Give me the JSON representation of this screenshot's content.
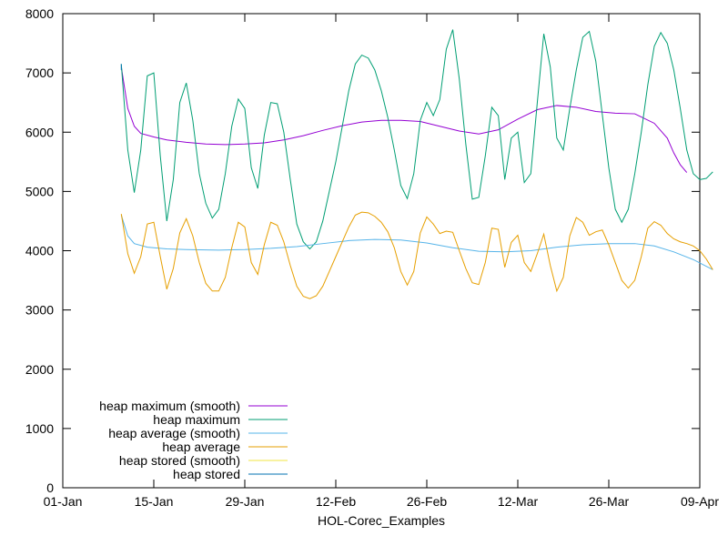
{
  "chart_data": {
    "type": "line",
    "xlabel": "HOL-Corec_Examples",
    "ylabel": "",
    "x_axis_type": "date",
    "xlim": [
      "2023-01-01",
      "2023-04-09"
    ],
    "ylim": [
      0,
      8000
    ],
    "x_ticks": [
      {
        "date": "2023-01-01",
        "label": "01-Jan"
      },
      {
        "date": "2023-01-15",
        "label": "15-Jan"
      },
      {
        "date": "2023-01-29",
        "label": "29-Jan"
      },
      {
        "date": "2023-02-12",
        "label": "12-Feb"
      },
      {
        "date": "2023-02-26",
        "label": "26-Feb"
      },
      {
        "date": "2023-03-12",
        "label": "12-Mar"
      },
      {
        "date": "2023-03-26",
        "label": "26-Mar"
      },
      {
        "date": "2023-04-09",
        "label": "09-Apr"
      }
    ],
    "y_ticks": [
      0,
      1000,
      2000,
      3000,
      4000,
      5000,
      6000,
      7000,
      8000
    ],
    "grid": false,
    "legend_position": "bottom-left",
    "series": [
      {
        "name": "heap maximum (smooth)",
        "color": "#9400d3",
        "points": [
          [
            "2023-01-10",
            7100
          ],
          [
            "2023-01-11",
            6400
          ],
          [
            "2023-01-12",
            6100
          ],
          [
            "2023-01-13",
            5980
          ],
          [
            "2023-01-15",
            5920
          ],
          [
            "2023-01-17",
            5870
          ],
          [
            "2023-01-20",
            5830
          ],
          [
            "2023-01-23",
            5800
          ],
          [
            "2023-01-26",
            5790
          ],
          [
            "2023-01-29",
            5800
          ],
          [
            "2023-02-01",
            5820
          ],
          [
            "2023-02-04",
            5870
          ],
          [
            "2023-02-07",
            5940
          ],
          [
            "2023-02-10",
            6030
          ],
          [
            "2023-02-13",
            6110
          ],
          [
            "2023-02-16",
            6170
          ],
          [
            "2023-02-19",
            6200
          ],
          [
            "2023-02-22",
            6200
          ],
          [
            "2023-02-25",
            6180
          ],
          [
            "2023-02-28",
            6100
          ],
          [
            "2023-03-03",
            6020
          ],
          [
            "2023-03-06",
            5970
          ],
          [
            "2023-03-09",
            6040
          ],
          [
            "2023-03-12",
            6220
          ],
          [
            "2023-03-15",
            6380
          ],
          [
            "2023-03-18",
            6450
          ],
          [
            "2023-03-21",
            6420
          ],
          [
            "2023-03-24",
            6350
          ],
          [
            "2023-03-27",
            6320
          ],
          [
            "2023-03-30",
            6310
          ],
          [
            "2023-04-02",
            6150
          ],
          [
            "2023-04-04",
            5900
          ],
          [
            "2023-04-05",
            5650
          ],
          [
            "2023-04-06",
            5450
          ],
          [
            "2023-04-07",
            5320
          ]
        ]
      },
      {
        "name": "heap maximum",
        "color": "#009e73",
        "points": [
          [
            "2023-01-10",
            7150
          ],
          [
            "2023-01-11",
            5700
          ],
          [
            "2023-01-12",
            4980
          ],
          [
            "2023-01-13",
            5700
          ],
          [
            "2023-01-14",
            6950
          ],
          [
            "2023-01-15",
            7000
          ],
          [
            "2023-01-16",
            5600
          ],
          [
            "2023-01-17",
            4500
          ],
          [
            "2023-01-18",
            5200
          ],
          [
            "2023-01-19",
            6500
          ],
          [
            "2023-01-20",
            6830
          ],
          [
            "2023-01-21",
            6200
          ],
          [
            "2023-01-22",
            5300
          ],
          [
            "2023-01-23",
            4800
          ],
          [
            "2023-01-24",
            4550
          ],
          [
            "2023-01-25",
            4700
          ],
          [
            "2023-01-26",
            5300
          ],
          [
            "2023-01-27",
            6100
          ],
          [
            "2023-01-28",
            6560
          ],
          [
            "2023-01-29",
            6400
          ],
          [
            "2023-01-30",
            5400
          ],
          [
            "2023-01-31",
            5050
          ],
          [
            "2023-02-01",
            5950
          ],
          [
            "2023-02-02",
            6500
          ],
          [
            "2023-02-03",
            6480
          ],
          [
            "2023-02-04",
            6000
          ],
          [
            "2023-02-05",
            5200
          ],
          [
            "2023-02-06",
            4450
          ],
          [
            "2023-02-07",
            4150
          ],
          [
            "2023-02-08",
            4030
          ],
          [
            "2023-02-09",
            4150
          ],
          [
            "2023-02-10",
            4500
          ],
          [
            "2023-02-11",
            5000
          ],
          [
            "2023-02-12",
            5500
          ],
          [
            "2023-02-13",
            6100
          ],
          [
            "2023-02-14",
            6700
          ],
          [
            "2023-02-15",
            7150
          ],
          [
            "2023-02-16",
            7300
          ],
          [
            "2023-02-17",
            7250
          ],
          [
            "2023-02-18",
            7050
          ],
          [
            "2023-02-19",
            6700
          ],
          [
            "2023-02-20",
            6250
          ],
          [
            "2023-02-21",
            5700
          ],
          [
            "2023-02-22",
            5100
          ],
          [
            "2023-02-23",
            4880
          ],
          [
            "2023-02-24",
            5300
          ],
          [
            "2023-02-25",
            6200
          ],
          [
            "2023-02-26",
            6500
          ],
          [
            "2023-02-27",
            6280
          ],
          [
            "2023-02-28",
            6550
          ],
          [
            "2023-03-01",
            7400
          ],
          [
            "2023-03-02",
            7730
          ],
          [
            "2023-03-03",
            6900
          ],
          [
            "2023-03-04",
            5800
          ],
          [
            "2023-03-05",
            4870
          ],
          [
            "2023-03-06",
            4900
          ],
          [
            "2023-03-07",
            5600
          ],
          [
            "2023-03-08",
            6420
          ],
          [
            "2023-03-09",
            6280
          ],
          [
            "2023-03-10",
            5200
          ],
          [
            "2023-03-11",
            5900
          ],
          [
            "2023-03-12",
            6000
          ],
          [
            "2023-03-13",
            5150
          ],
          [
            "2023-03-14",
            5300
          ],
          [
            "2023-03-15",
            6500
          ],
          [
            "2023-03-16",
            7660
          ],
          [
            "2023-03-17",
            7100
          ],
          [
            "2023-03-18",
            5900
          ],
          [
            "2023-03-19",
            5700
          ],
          [
            "2023-03-20",
            6400
          ],
          [
            "2023-03-21",
            7050
          ],
          [
            "2023-03-22",
            7600
          ],
          [
            "2023-03-23",
            7700
          ],
          [
            "2023-03-24",
            7200
          ],
          [
            "2023-03-25",
            6300
          ],
          [
            "2023-03-26",
            5400
          ],
          [
            "2023-03-27",
            4700
          ],
          [
            "2023-03-28",
            4480
          ],
          [
            "2023-03-29",
            4700
          ],
          [
            "2023-03-30",
            5300
          ],
          [
            "2023-03-31",
            6000
          ],
          [
            "2023-04-01",
            6800
          ],
          [
            "2023-04-02",
            7450
          ],
          [
            "2023-04-03",
            7680
          ],
          [
            "2023-04-04",
            7500
          ],
          [
            "2023-04-05",
            7050
          ],
          [
            "2023-04-06",
            6400
          ],
          [
            "2023-04-07",
            5700
          ],
          [
            "2023-04-08",
            5300
          ],
          [
            "2023-04-09",
            5200
          ],
          [
            "2023-04-10",
            5220
          ],
          [
            "2023-04-11",
            5330
          ]
        ]
      },
      {
        "name": "heap average (smooth)",
        "color": "#56b4e9",
        "points": [
          [
            "2023-01-10",
            4600
          ],
          [
            "2023-01-11",
            4250
          ],
          [
            "2023-01-12",
            4120
          ],
          [
            "2023-01-14",
            4060
          ],
          [
            "2023-01-17",
            4030
          ],
          [
            "2023-01-20",
            4020
          ],
          [
            "2023-01-25",
            4010
          ],
          [
            "2023-01-29",
            4020
          ],
          [
            "2023-02-02",
            4040
          ],
          [
            "2023-02-06",
            4070
          ],
          [
            "2023-02-10",
            4120
          ],
          [
            "2023-02-14",
            4170
          ],
          [
            "2023-02-18",
            4190
          ],
          [
            "2023-02-22",
            4180
          ],
          [
            "2023-02-26",
            4130
          ],
          [
            "2023-03-02",
            4050
          ],
          [
            "2023-03-06",
            3990
          ],
          [
            "2023-03-10",
            3980
          ],
          [
            "2023-03-14",
            4000
          ],
          [
            "2023-03-18",
            4060
          ],
          [
            "2023-03-22",
            4100
          ],
          [
            "2023-03-26",
            4120
          ],
          [
            "2023-03-30",
            4120
          ],
          [
            "2023-04-02",
            4080
          ],
          [
            "2023-04-05",
            3980
          ],
          [
            "2023-04-08",
            3850
          ],
          [
            "2023-04-11",
            3680
          ]
        ]
      },
      {
        "name": "heap average",
        "color": "#e69f00",
        "points": [
          [
            "2023-01-10",
            4620
          ],
          [
            "2023-01-11",
            3950
          ],
          [
            "2023-01-12",
            3620
          ],
          [
            "2023-01-13",
            3900
          ],
          [
            "2023-01-14",
            4450
          ],
          [
            "2023-01-15",
            4480
          ],
          [
            "2023-01-16",
            3900
          ],
          [
            "2023-01-17",
            3350
          ],
          [
            "2023-01-18",
            3700
          ],
          [
            "2023-01-19",
            4300
          ],
          [
            "2023-01-20",
            4540
          ],
          [
            "2023-01-21",
            4250
          ],
          [
            "2023-01-22",
            3800
          ],
          [
            "2023-01-23",
            3450
          ],
          [
            "2023-01-24",
            3320
          ],
          [
            "2023-01-25",
            3320
          ],
          [
            "2023-01-26",
            3550
          ],
          [
            "2023-01-27",
            4050
          ],
          [
            "2023-01-28",
            4480
          ],
          [
            "2023-01-29",
            4400
          ],
          [
            "2023-01-30",
            3800
          ],
          [
            "2023-01-31",
            3600
          ],
          [
            "2023-02-01",
            4100
          ],
          [
            "2023-02-02",
            4480
          ],
          [
            "2023-02-03",
            4430
          ],
          [
            "2023-02-04",
            4150
          ],
          [
            "2023-02-05",
            3750
          ],
          [
            "2023-02-06",
            3400
          ],
          [
            "2023-02-07",
            3230
          ],
          [
            "2023-02-08",
            3190
          ],
          [
            "2023-02-09",
            3240
          ],
          [
            "2023-02-10",
            3400
          ],
          [
            "2023-02-11",
            3650
          ],
          [
            "2023-02-12",
            3900
          ],
          [
            "2023-02-13",
            4150
          ],
          [
            "2023-02-14",
            4400
          ],
          [
            "2023-02-15",
            4600
          ],
          [
            "2023-02-16",
            4650
          ],
          [
            "2023-02-17",
            4640
          ],
          [
            "2023-02-18",
            4580
          ],
          [
            "2023-02-19",
            4480
          ],
          [
            "2023-02-20",
            4320
          ],
          [
            "2023-02-21",
            4050
          ],
          [
            "2023-02-22",
            3650
          ],
          [
            "2023-02-23",
            3420
          ],
          [
            "2023-02-24",
            3650
          ],
          [
            "2023-02-25",
            4300
          ],
          [
            "2023-02-26",
            4570
          ],
          [
            "2023-02-27",
            4450
          ],
          [
            "2023-02-28",
            4290
          ],
          [
            "2023-03-01",
            4330
          ],
          [
            "2023-03-02",
            4310
          ],
          [
            "2023-03-03",
            4000
          ],
          [
            "2023-03-04",
            3700
          ],
          [
            "2023-03-05",
            3460
          ],
          [
            "2023-03-06",
            3430
          ],
          [
            "2023-03-07",
            3800
          ],
          [
            "2023-03-08",
            4380
          ],
          [
            "2023-03-09",
            4360
          ],
          [
            "2023-03-10",
            3720
          ],
          [
            "2023-03-11",
            4140
          ],
          [
            "2023-03-12",
            4260
          ],
          [
            "2023-03-13",
            3800
          ],
          [
            "2023-03-14",
            3650
          ],
          [
            "2023-03-15",
            3950
          ],
          [
            "2023-03-16",
            4280
          ],
          [
            "2023-03-17",
            3750
          ],
          [
            "2023-03-18",
            3320
          ],
          [
            "2023-03-19",
            3550
          ],
          [
            "2023-03-20",
            4250
          ],
          [
            "2023-03-21",
            4560
          ],
          [
            "2023-03-22",
            4480
          ],
          [
            "2023-03-23",
            4260
          ],
          [
            "2023-03-24",
            4320
          ],
          [
            "2023-03-25",
            4350
          ],
          [
            "2023-03-26",
            4100
          ],
          [
            "2023-03-27",
            3800
          ],
          [
            "2023-03-28",
            3500
          ],
          [
            "2023-03-29",
            3370
          ],
          [
            "2023-03-30",
            3500
          ],
          [
            "2023-03-31",
            3900
          ],
          [
            "2023-04-01",
            4380
          ],
          [
            "2023-04-02",
            4490
          ],
          [
            "2023-04-03",
            4430
          ],
          [
            "2023-04-04",
            4290
          ],
          [
            "2023-04-05",
            4200
          ],
          [
            "2023-04-06",
            4150
          ],
          [
            "2023-04-07",
            4120
          ],
          [
            "2023-04-08",
            4080
          ],
          [
            "2023-04-09",
            4000
          ],
          [
            "2023-04-10",
            3860
          ],
          [
            "2023-04-11",
            3680
          ]
        ]
      },
      {
        "name": "heap stored (smooth)",
        "color": "#f0e442",
        "points": []
      },
      {
        "name": "heap stored",
        "color": "#0072b2",
        "points": [
          [
            "2023-01-10",
            7150
          ],
          [
            "2023-01-10",
            7050
          ]
        ]
      }
    ]
  }
}
